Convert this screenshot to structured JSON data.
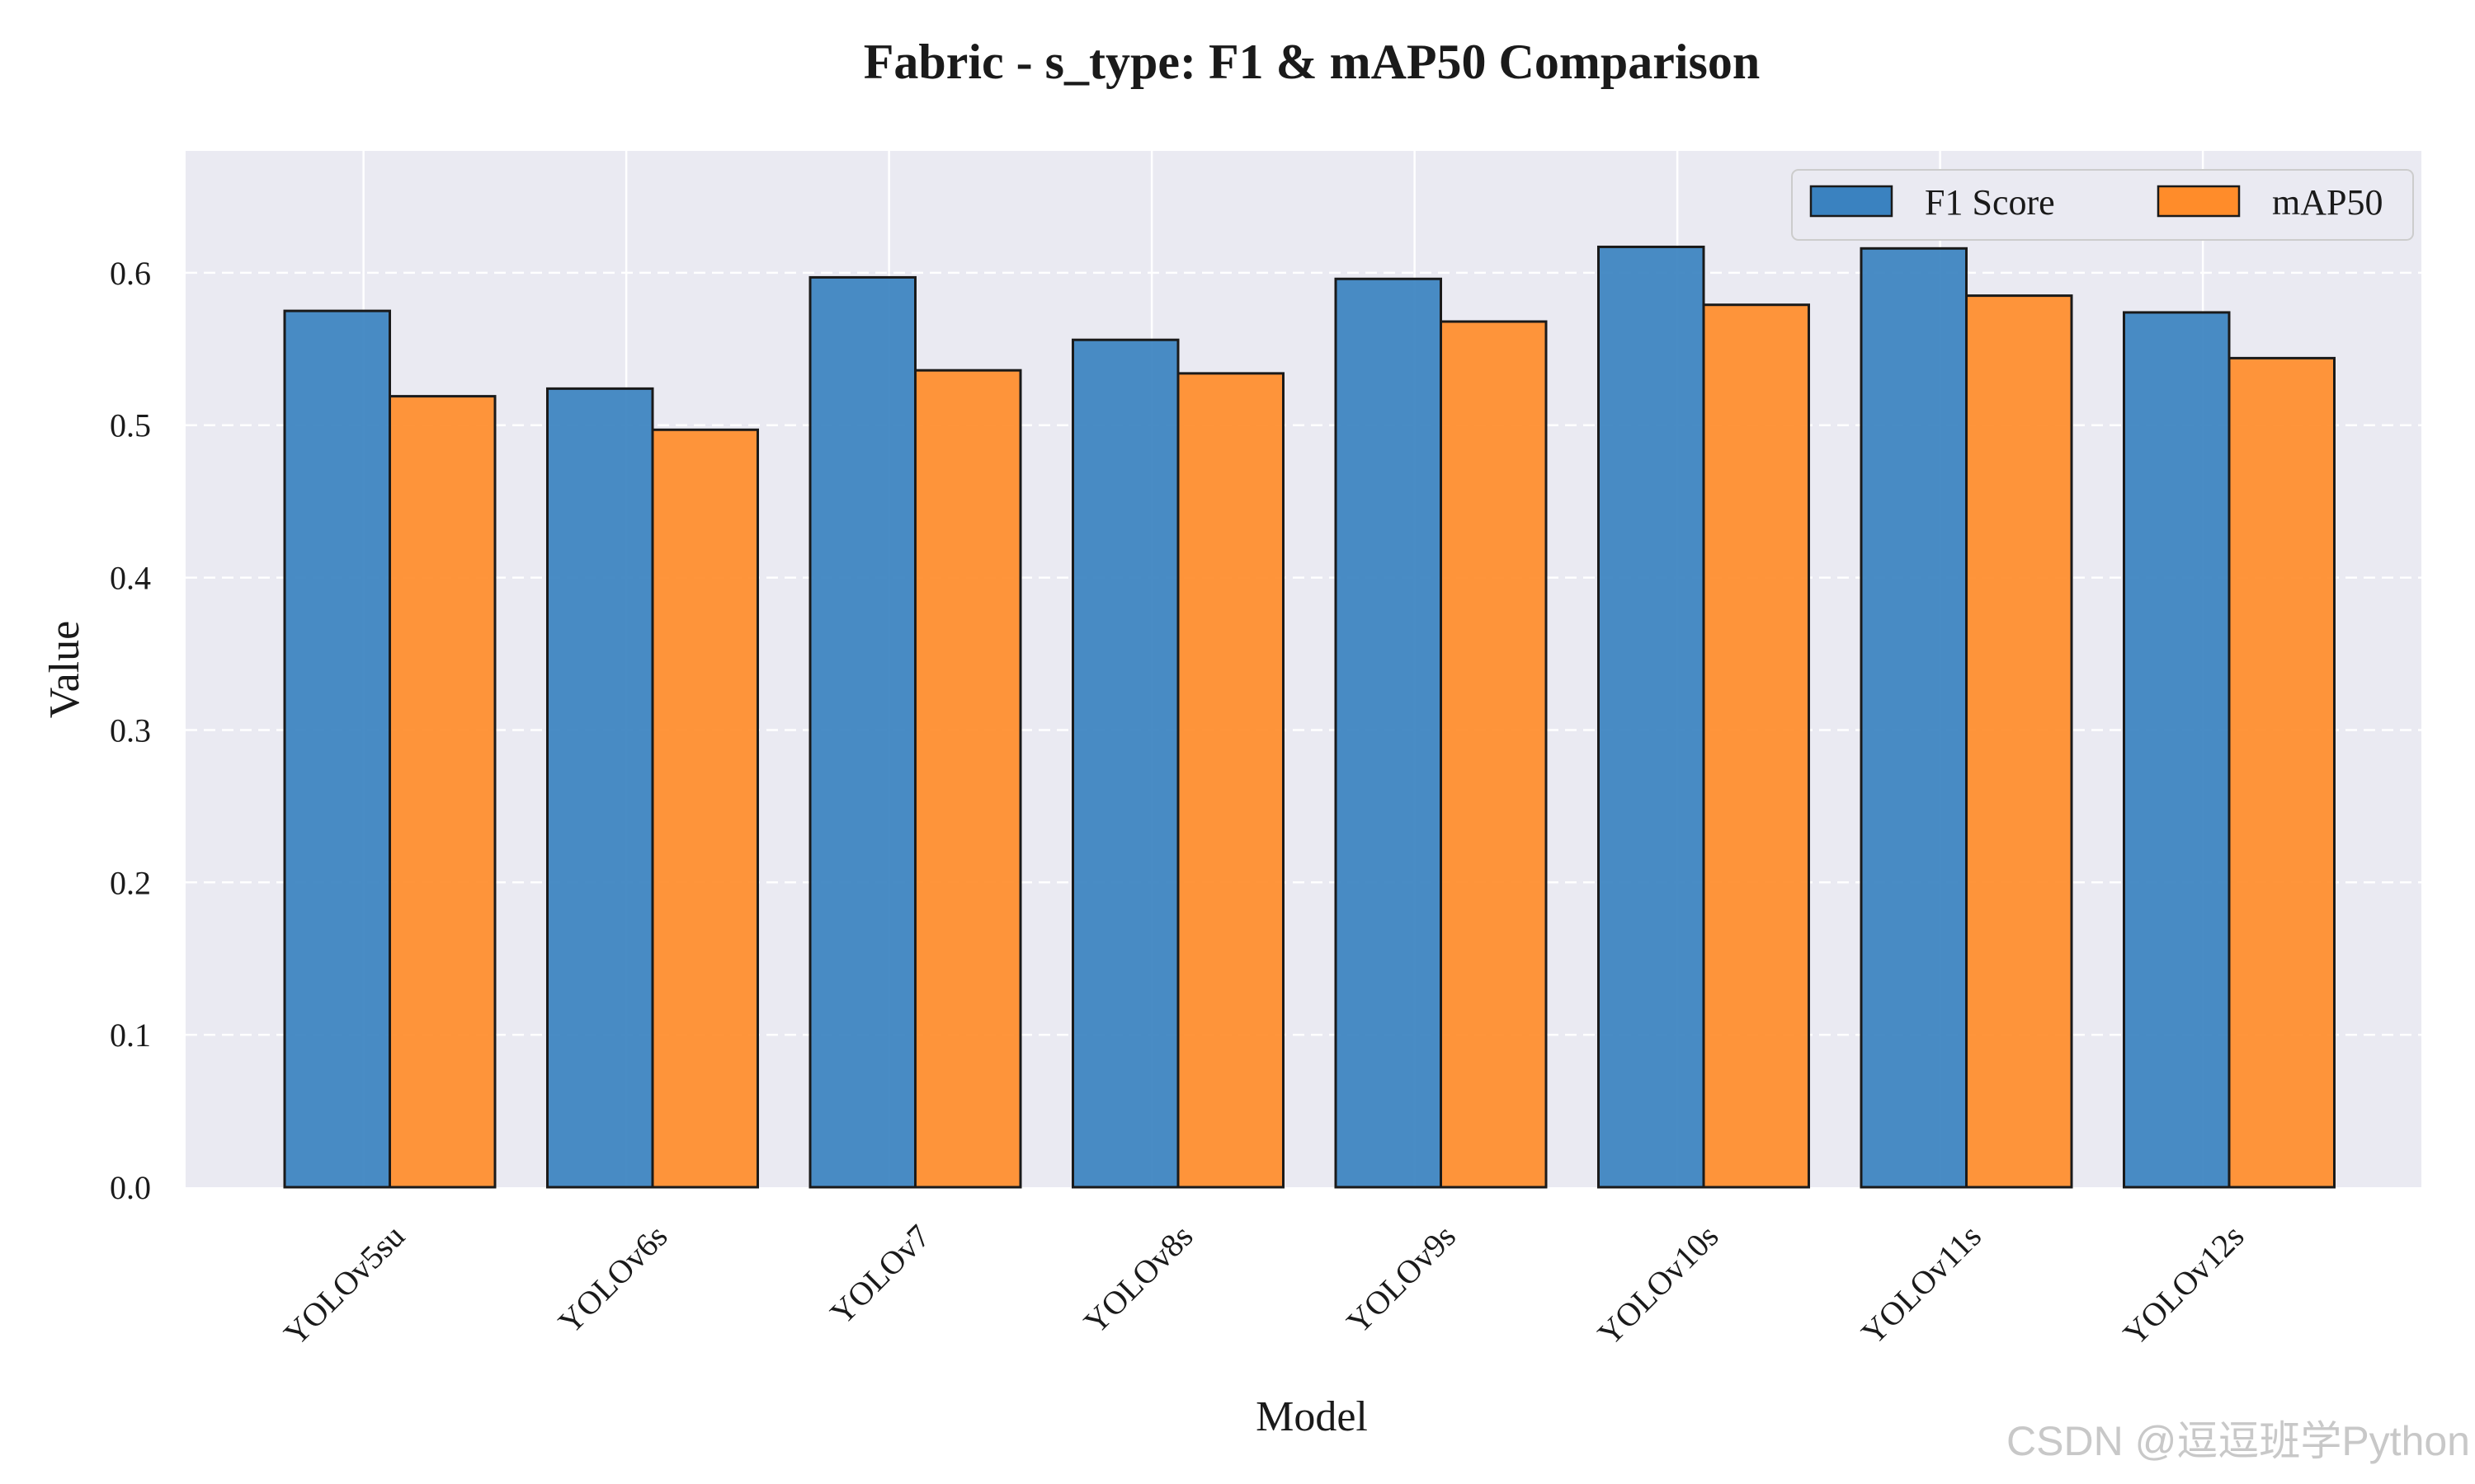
{
  "chart_data": {
    "type": "bar",
    "title": "Fabric - s_type: F1 & mAP50 Comparison",
    "xlabel": "Model",
    "ylabel": "Value",
    "categories": [
      "YOLOv5su",
      "YOLOv6s",
      "YOLOv7",
      "YOLOv8s",
      "YOLOv9s",
      "YOLOv10s",
      "YOLOv11s",
      "YOLOv12s"
    ],
    "series": [
      {
        "name": "F1 Score",
        "color": "#3a82c0",
        "values": [
          0.575,
          0.524,
          0.597,
          0.556,
          0.596,
          0.617,
          0.616,
          0.574
        ]
      },
      {
        "name": "mAP50",
        "color": "#ff8c2a",
        "values": [
          0.519,
          0.497,
          0.536,
          0.534,
          0.568,
          0.579,
          0.585,
          0.544
        ]
      }
    ],
    "ylim": [
      0,
      0.68
    ],
    "yticks": [
      "0.0",
      "0.1",
      "0.2",
      "0.3",
      "0.4",
      "0.5",
      "0.6"
    ],
    "grid": true,
    "legend_position": "top-right",
    "background_color": "#eaeaf2"
  },
  "watermark": "CSDN @逗逗班学Python"
}
